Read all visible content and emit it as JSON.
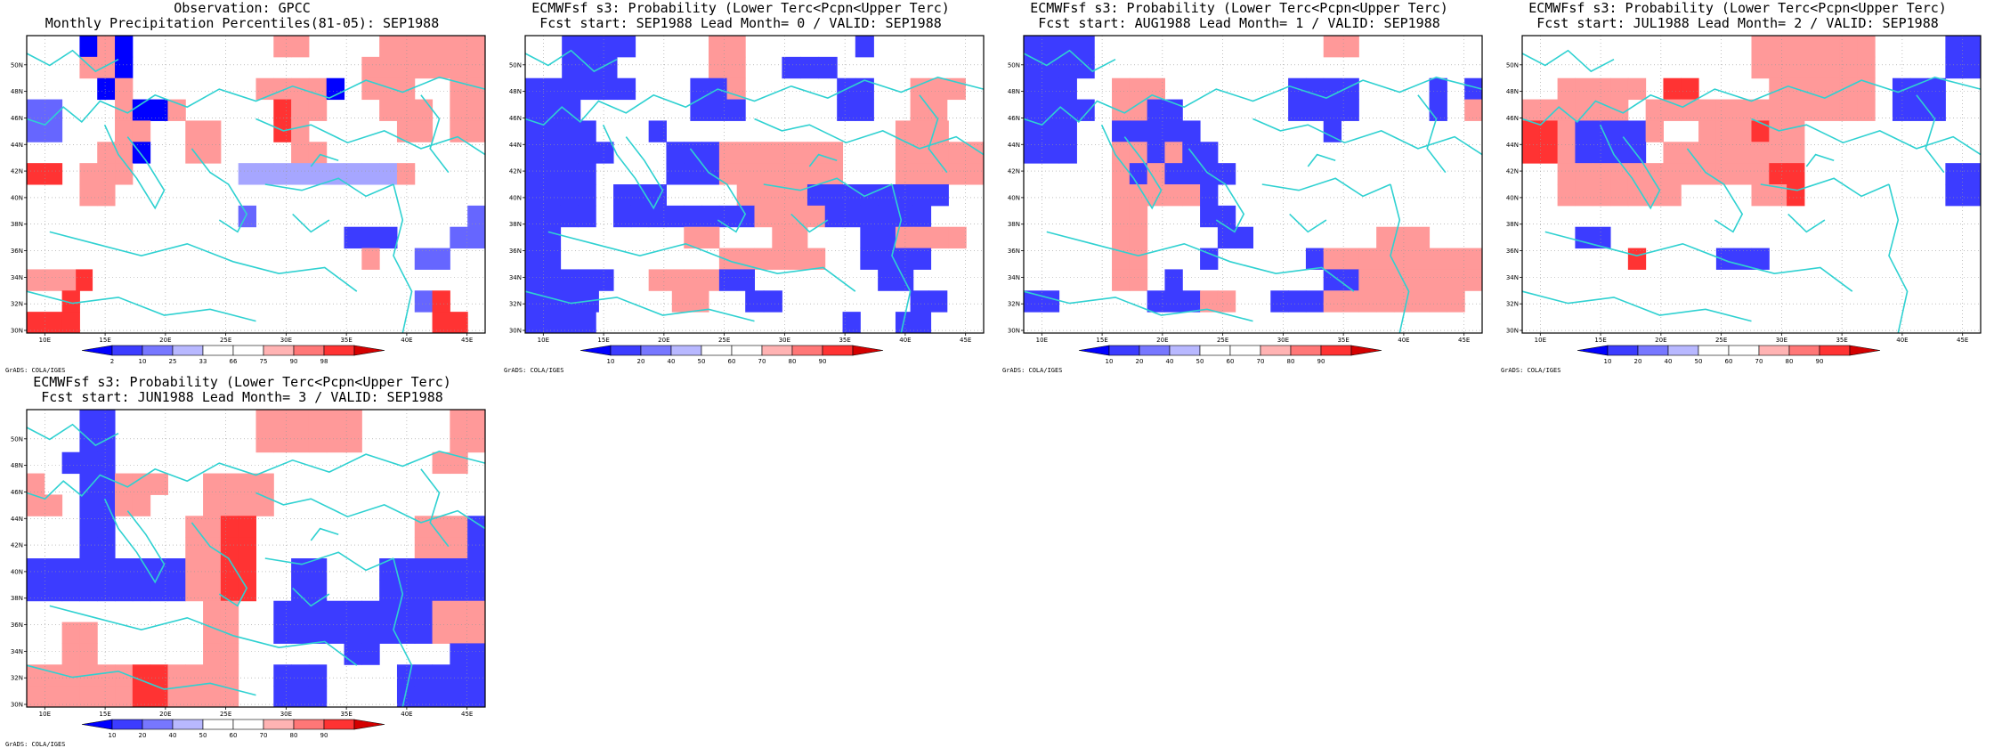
{
  "chart_data": [
    {
      "type": "heatmap",
      "title_line1": "Observation: GPCC",
      "title_line2": "Monthly Precipitation Percentiles(81-05): SEP1988",
      "x_ticks": [
        "10E",
        "15E",
        "20E",
        "25E",
        "30E",
        "35E",
        "40E",
        "45E"
      ],
      "y_ticks": [
        "30N",
        "32N",
        "34N",
        "36N",
        "38N",
        "40N",
        "42N",
        "44N",
        "46N",
        "48N",
        "50N"
      ],
      "xlim": [
        8.5,
        46.5
      ],
      "ylim": [
        29.8,
        52.2
      ],
      "colorbar_ticks": [
        "2",
        "10",
        "25",
        "33",
        "66",
        "75",
        "90",
        "98"
      ],
      "credit": "GrADS: COLA/IGES",
      "grid": [
        "00012100000000220000222222",
        "00022100000000000002222222",
        "00001200000002222102220022",
        "55000211200000322000222022",
        "55000220022000320000022022",
        "00002210022000022000000000",
        "33022200000044444444420000",
        "00022000000000000000000000",
        "00000000000050000000000005",
        "00000000000000000066600055",
        "00000000000000000002005500",
        "2223000000000000000000000000",
        "00300000000000000000005300",
        "33300000000000000000000330"
      ]
    },
    {
      "type": "heatmap",
      "title_line1": "ECMWFsf s3: Probability (Lower Terc<Pcpn<Upper Terc)",
      "title_line2": "Fcst start: SEP1988  Lead Month= 0 / VALID: SEP1988",
      "x_ticks": [
        "10E",
        "15E",
        "20E",
        "25E",
        "30E",
        "35E",
        "40E",
        "45E"
      ],
      "y_ticks": [
        "30N",
        "32N",
        "34N",
        "36N",
        "38N",
        "40N",
        "42N",
        "44N",
        "46N",
        "48N",
        "50N"
      ],
      "xlim": [
        8.5,
        46.5
      ],
      "ylim": [
        29.8,
        52.2
      ],
      "colorbar_ticks": [
        "10",
        "20",
        "40",
        "50",
        "60",
        "70",
        "80",
        "90"
      ],
      "credit": "GrADS: COLA/IGES",
      "grid": [
        "0066660000220000006000000",
        "0066600000220066600000000",
        "6666660006620000066002220",
        "6660000006660000066002200",
        "66660006000000000000022200",
        "66666000666222222200022222",
        "66660000666222222200022222",
        "66660666000022226666666600",
        "66660666666662222666666000",
        "66000000022000220006622220",
        "66000000000222222006666000",
        "66666002222660000000660000",
        "6666000022006600000006600",
        "66660000000000000060066000"
      ]
    },
    {
      "type": "heatmap",
      "title_line1": "ECMWFsf s3: Probability (Lower Terc<Pcpn<Upper Terc)",
      "title_line2": "Fcst start: AUG1988  Lead Month= 1 / VALID: SEP1988",
      "x_ticks": [
        "10E",
        "15E",
        "20E",
        "25E",
        "30E",
        "35E",
        "40E",
        "45E"
      ],
      "y_ticks": [
        "30N",
        "32N",
        "34N",
        "36N",
        "38N",
        "40N",
        "42N",
        "44N",
        "46N",
        "48N",
        "50N"
      ],
      "xlim": [
        8.5,
        46.5
      ],
      "ylim": [
        29.8,
        52.2
      ],
      "colorbar_ticks": [
        "10",
        "20",
        "40",
        "50",
        "60",
        "70",
        "80",
        "90"
      ],
      "credit": "GrADS: COLA/IGES",
      "grid": [
        "66660000000000000220000000",
        "66660000000000000000000000",
        "66600222000000066660000606",
        "66660226600000066660000602",
        "66600666660000000600000000",
        "66600226266000000000000000",
        "00000262666600000000000000",
        "00000222226000000000000000",
        "00000220006600000000000000",
        "00000220000660000000222000",
        "00000220006000006222222222",
        "00000220600000000662222222",
        "66000006662200666222222220",
        "00000000000000000000000000"
      ]
    },
    {
      "type": "heatmap",
      "title_line1": "ECMWFsf s3: Probability (Lower Terc<Pcpn<Upper Terc)",
      "title_line2": "Fcst start: JUL1988  Lead Month= 2 / VALID: SEP1988",
      "x_ticks": [
        "10E",
        "15E",
        "20E",
        "25E",
        "30E",
        "35E",
        "40E",
        "45E"
      ],
      "y_ticks": [
        "30N",
        "32N",
        "34N",
        "36N",
        "38N",
        "40N",
        "42N",
        "44N",
        "46N",
        "48N",
        "50N"
      ],
      "xlim": [
        8.5,
        46.5
      ],
      "ylim": [
        29.8,
        52.2
      ],
      "colorbar_ticks": [
        "10",
        "20",
        "40",
        "50",
        "60",
        "70",
        "80",
        "90"
      ],
      "credit": "GrADS: COLA/IGES",
      "grid": [
        "00000000000002222222000066",
        "00000000000002222222000066",
        "00222220330000222222066600",
        "22222202222222222222066600",
        "33266662002223220000000000",
        "33266660222222220000000000",
        "00222222222222330000000066",
        "00222222200002230000000066",
        "00000000000000000000000000",
        "00066000000000000000000000",
        "00000030000666000000000000",
        "00000000000000000000000000",
        "00000000000000000000000000",
        "00000000000000000000000000"
      ]
    },
    {
      "type": "heatmap",
      "title_line1": "ECMWFsf s3: Probability (Lower Terc<Pcpn<Upper Terc)",
      "title_line2": "Fcst start: JUN1988  Lead Month= 3 / VALID: SEP1988",
      "x_ticks": [
        "10E",
        "15E",
        "20E",
        "25E",
        "30E",
        "35E",
        "40E",
        "45E"
      ],
      "y_ticks": [
        "30N",
        "32N",
        "34N",
        "36N",
        "38N",
        "40N",
        "42N",
        "44N",
        "46N",
        "48N",
        "50N"
      ],
      "xlim": [
        8.5,
        46.5
      ],
      "ylim": [
        29.8,
        52.2
      ],
      "colorbar_ticks": [
        "10",
        "20",
        "40",
        "50",
        "60",
        "70",
        "80",
        "90"
      ],
      "credit": "GrADS: COLA/IGES",
      "grid": [
        "00066000000002222220000022",
        "00066000000002222220000022",
        "00666000000000000000000220",
        "20066222002222000000000000",
        "22066220002222000000000000",
        "00066000022330000000002226",
        "00066000022330000000002226",
        "66666666622330066000666666",
        "66666666622330066000666666",
        "00000000002200666666666222",
        "00220000002200666666666222",
        "00220000002200000066000066",
        "22222233222200666000066666",
        "22222233222200666000066666"
      ]
    }
  ]
}
